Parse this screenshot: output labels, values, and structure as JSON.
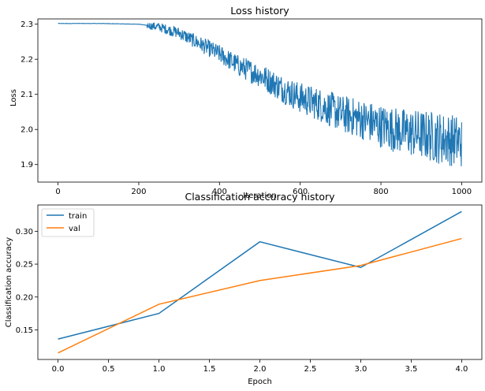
{
  "chart_data": [
    {
      "type": "line",
      "title": "Loss history",
      "xlabel": "Iteration",
      "ylabel": "Loss",
      "xlim": [
        -50,
        1050
      ],
      "ylim": [
        1.85,
        2.315
      ],
      "xticks": [
        0,
        200,
        400,
        600,
        800,
        1000
      ],
      "xtick_labels": [
        "0",
        "200",
        "400",
        "600",
        "800",
        "1000"
      ],
      "yticks": [
        1.9,
        2.0,
        2.1,
        2.2,
        2.3
      ],
      "ytick_labels": [
        "1.9",
        "2.0",
        "2.1",
        "2.2",
        "2.3"
      ],
      "grid": false,
      "series": [
        {
          "color": "#1f77b4",
          "x": [
            0,
            100,
            200,
            250,
            300,
            350,
            400,
            450,
            500,
            550,
            600,
            650,
            700,
            750,
            800,
            850,
            900,
            950,
            1000
          ],
          "y": [
            2.302,
            2.302,
            2.3,
            2.292,
            2.275,
            2.245,
            2.215,
            2.18,
            2.155,
            2.12,
            2.09,
            2.07,
            2.045,
            2.03,
            2.01,
            1.995,
            1.985,
            1.975,
            1.965
          ],
          "noise_note": ""
        }
      ]
    },
    {
      "type": "line",
      "title": "Classification accuracy history",
      "xlabel": "Epoch",
      "ylabel": "Classification accuracy",
      "xlim": [
        -0.2,
        4.2
      ],
      "ylim": [
        0.105,
        0.34
      ],
      "xticks": [
        0,
        0.5,
        1,
        1.5,
        2,
        2.5,
        3,
        3.5,
        4
      ],
      "xtick_labels": [
        "0.0",
        "0.5",
        "1.0",
        "1.5",
        "2.0",
        "2.5",
        "3.0",
        "3.5",
        "4.0"
      ],
      "yticks": [
        0.15,
        0.2,
        0.25,
        0.3
      ],
      "ytick_labels": [
        "0.15",
        "0.20",
        "0.25",
        "0.30"
      ],
      "grid": false,
      "legend": "upper-left",
      "series": [
        {
          "name": "train",
          "color": "#1f77b4",
          "x": [
            0,
            1,
            2,
            3,
            4
          ],
          "y": [
            0.136,
            0.175,
            0.284,
            0.245,
            0.33
          ]
        },
        {
          "name": "val",
          "color": "#ff7f0e",
          "x": [
            0,
            1,
            2,
            3,
            4
          ],
          "y": [
            0.115,
            0.189,
            0.225,
            0.248,
            0.289
          ]
        }
      ]
    }
  ]
}
